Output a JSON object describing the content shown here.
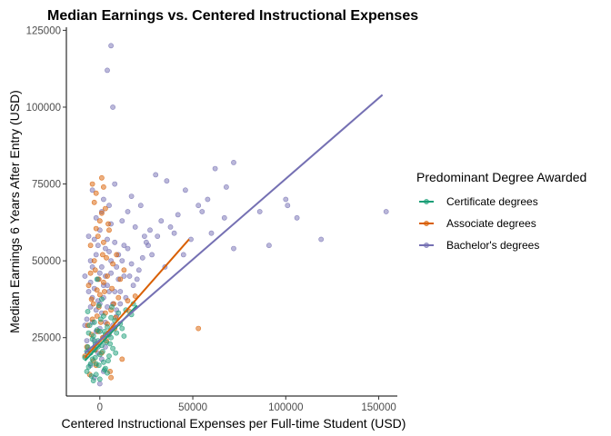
{
  "chart_data": {
    "type": "scatter",
    "title": "Median Earnings vs. Centered Instructional Expenses",
    "xlabel": "Centered Instructional Expenses per Full-time Student (USD)",
    "ylabel": "Median Earnings 6 Years After Entry (USD)",
    "xlim": [
      -18000,
      160000
    ],
    "ylim": [
      6000,
      126000
    ],
    "x_ticks": [
      0,
      50000,
      100000,
      150000
    ],
    "x_tick_labels": [
      "0",
      "50000",
      "100000",
      "150000"
    ],
    "y_ticks": [
      25000,
      50000,
      75000,
      100000,
      125000
    ],
    "y_tick_labels": [
      "25000",
      "50000",
      "75000",
      "100000",
      "125000"
    ],
    "grid": false,
    "legend": {
      "title": "Predominant Degree Awarded",
      "placement": "right"
    },
    "series": [
      {
        "name": "Certificate degrees",
        "color": "#1b9e77",
        "fit_line": {
          "x": [
            -8000,
            20000
          ],
          "y": [
            17500,
            35500
          ]
        },
        "points": [
          [
            -6000,
            15500
          ],
          [
            -4000,
            18000
          ],
          [
            -3000,
            21000
          ],
          [
            -2000,
            16500
          ],
          [
            -1000,
            24000
          ],
          [
            0,
            19500
          ],
          [
            1000,
            22500
          ],
          [
            2000,
            17000
          ],
          [
            3000,
            26000
          ],
          [
            -5000,
            20000
          ],
          [
            4000,
            28500
          ],
          [
            -7000,
            14000
          ],
          [
            500,
            31000
          ],
          [
            6000,
            25000
          ],
          [
            -2500,
            23000
          ],
          [
            8000,
            30500
          ],
          [
            -4500,
            12500
          ],
          [
            1500,
            20500
          ],
          [
            10000,
            33000
          ],
          [
            -6500,
            22000
          ],
          [
            2500,
            14500
          ],
          [
            -1500,
            27500
          ],
          [
            5000,
            19000
          ],
          [
            -3500,
            25500
          ],
          [
            14000,
            34000
          ],
          [
            -500,
            16000
          ],
          [
            3500,
            23500
          ],
          [
            -5500,
            29000
          ],
          [
            7000,
            21500
          ],
          [
            12000,
            28000
          ],
          [
            -8000,
            18500
          ],
          [
            2000,
            32000
          ],
          [
            -2000,
            13000
          ],
          [
            9000,
            26500
          ],
          [
            0,
            11500
          ],
          [
            -3000,
            30000
          ],
          [
            4500,
            17500
          ],
          [
            6500,
            35000
          ],
          [
            -6000,
            26500
          ],
          [
            1000,
            37500
          ],
          [
            -1000,
            22000
          ],
          [
            17000,
            32500
          ],
          [
            -4000,
            24500
          ],
          [
            3000,
            15000
          ],
          [
            11000,
            29500
          ],
          [
            -7000,
            20500
          ],
          [
            5500,
            23000
          ],
          [
            -500,
            35500
          ],
          [
            8500,
            20000
          ],
          [
            -2500,
            18500
          ],
          [
            18000,
            36000
          ],
          [
            -5000,
            16500
          ],
          [
            2500,
            27000
          ],
          [
            -1500,
            44000
          ],
          [
            4000,
            13500
          ],
          [
            -3500,
            11000
          ],
          [
            6000,
            31500
          ],
          [
            0,
            27000
          ],
          [
            -6500,
            33500
          ],
          [
            13000,
            25500
          ]
        ]
      },
      {
        "name": "Associate degrees",
        "color": "#d95f02",
        "fit_line": {
          "x": [
            -8000,
            48000
          ],
          "y": [
            18500,
            57000
          ]
        },
        "points": [
          [
            -4000,
            75000
          ],
          [
            1000,
            77000
          ],
          [
            -2000,
            72000
          ],
          [
            2000,
            74000
          ],
          [
            -3000,
            69000
          ],
          [
            0,
            63000
          ],
          [
            3000,
            67000
          ],
          [
            -1000,
            58000
          ],
          [
            5000,
            60000
          ],
          [
            -5000,
            55000
          ],
          [
            1500,
            52000
          ],
          [
            7000,
            49000
          ],
          [
            -2500,
            47000
          ],
          [
            4000,
            45000
          ],
          [
            -6000,
            42000
          ],
          [
            2500,
            40000
          ],
          [
            10000,
            38000
          ],
          [
            -3500,
            36000
          ],
          [
            6000,
            34000
          ],
          [
            -1500,
            32000
          ],
          [
            500,
            30000
          ],
          [
            8000,
            28000
          ],
          [
            -4500,
            26000
          ],
          [
            3500,
            24000
          ],
          [
            -7000,
            22000
          ],
          [
            1000,
            20000
          ],
          [
            12000,
            18000
          ],
          [
            -2000,
            16000
          ],
          [
            5500,
            14000
          ],
          [
            -5500,
            13000
          ],
          [
            15000,
            37000
          ],
          [
            -500,
            44000
          ],
          [
            2000,
            56000
          ],
          [
            4500,
            62000
          ],
          [
            -3000,
            50000
          ],
          [
            9000,
            52000
          ],
          [
            0,
            39000
          ],
          [
            -1000,
            27000
          ],
          [
            3000,
            33000
          ],
          [
            6500,
            41000
          ],
          [
            -6500,
            29000
          ],
          [
            11000,
            44000
          ],
          [
            -2500,
            21000
          ],
          [
            1500,
            25000
          ],
          [
            7500,
            36000
          ],
          [
            -4000,
            31000
          ],
          [
            13000,
            47000
          ],
          [
            2000,
            43000
          ],
          [
            -500,
            35000
          ],
          [
            4000,
            29500
          ],
          [
            -8000,
            19000
          ],
          [
            5000,
            26500
          ],
          [
            -1500,
            40500
          ],
          [
            8500,
            31500
          ],
          [
            0,
            23500
          ],
          [
            16000,
            33500
          ],
          [
            -3500,
            17500
          ],
          [
            3500,
            51000
          ],
          [
            -5000,
            46000
          ],
          [
            19000,
            38500
          ],
          [
            53000,
            28000
          ],
          [
            6000,
            12000
          ],
          [
            -2000,
            60500
          ],
          [
            1000,
            65500
          ],
          [
            -4500,
            37500
          ]
        ]
      },
      {
        "name": "Bachelor's degrees",
        "color": "#7570b3",
        "fit_line": {
          "x": [
            -8000,
            152000
          ],
          "y": [
            20000,
            104000
          ]
        },
        "points": [
          [
            6000,
            120000
          ],
          [
            4000,
            112000
          ],
          [
            7000,
            100000
          ],
          [
            30000,
            78000
          ],
          [
            36000,
            76000
          ],
          [
            62000,
            80000
          ],
          [
            72000,
            82000
          ],
          [
            68000,
            74000
          ],
          [
            46000,
            73000
          ],
          [
            100000,
            70000
          ],
          [
            58000,
            70000
          ],
          [
            86000,
            66000
          ],
          [
            154000,
            66000
          ],
          [
            42000,
            65000
          ],
          [
            53000,
            68000
          ],
          [
            55000,
            66000
          ],
          [
            33000,
            63000
          ],
          [
            60000,
            59000
          ],
          [
            38000,
            61000
          ],
          [
            27000,
            60000
          ],
          [
            22000,
            68000
          ],
          [
            17000,
            71000
          ],
          [
            15000,
            66000
          ],
          [
            26000,
            55000
          ],
          [
            19000,
            61000
          ],
          [
            40000,
            59000
          ],
          [
            49000,
            57000
          ],
          [
            12000,
            63000
          ],
          [
            72000,
            54000
          ],
          [
            91000,
            55000
          ],
          [
            119000,
            57000
          ],
          [
            106000,
            64000
          ],
          [
            101000,
            68000
          ],
          [
            67000,
            64000
          ],
          [
            45000,
            52000
          ],
          [
            35000,
            48000
          ],
          [
            28000,
            52000
          ],
          [
            21000,
            47000
          ],
          [
            13000,
            55000
          ],
          [
            24000,
            58000
          ],
          [
            31000,
            58000
          ],
          [
            10000,
            52000
          ],
          [
            16000,
            45000
          ],
          [
            5000,
            68000
          ],
          [
            -2000,
            64000
          ],
          [
            2000,
            70000
          ],
          [
            -4000,
            73000
          ],
          [
            8000,
            75000
          ],
          [
            0,
            60000
          ],
          [
            -3000,
            57000
          ],
          [
            3000,
            54000
          ],
          [
            -5000,
            50000
          ],
          [
            1000,
            48000
          ],
          [
            6000,
            46000
          ],
          [
            -1000,
            44000
          ],
          [
            4000,
            42000
          ],
          [
            -6000,
            40000
          ],
          [
            2000,
            38000
          ],
          [
            7000,
            36000
          ],
          [
            -2000,
            34000
          ],
          [
            9000,
            32000
          ],
          [
            -4000,
            30000
          ],
          [
            0,
            28000
          ],
          [
            5000,
            26000
          ],
          [
            -7000,
            24000
          ],
          [
            3000,
            22000
          ],
          [
            -1000,
            20000
          ],
          [
            1000,
            18000
          ],
          [
            -5000,
            16000
          ],
          [
            2000,
            14000
          ],
          [
            -3000,
            12000
          ],
          [
            0,
            10000
          ],
          [
            4000,
            35000
          ],
          [
            -8000,
            45000
          ],
          [
            11000,
            40000
          ],
          [
            14000,
            38000
          ],
          [
            -6000,
            58000
          ],
          [
            8000,
            56000
          ],
          [
            -2000,
            52000
          ],
          [
            6000,
            62000
          ],
          [
            1000,
            66000
          ],
          [
            -4000,
            48000
          ],
          [
            3000,
            30000
          ],
          [
            10000,
            44000
          ],
          [
            -1000,
            37000
          ],
          [
            5000,
            40000
          ],
          [
            12000,
            50000
          ],
          [
            -3000,
            41000
          ],
          [
            7000,
            29000
          ],
          [
            2000,
            25000
          ],
          [
            -5000,
            35000
          ],
          [
            9000,
            48000
          ],
          [
            0,
            46000
          ],
          [
            18000,
            42000
          ],
          [
            23000,
            51000
          ],
          [
            -7000,
            31000
          ],
          [
            4000,
            57000
          ],
          [
            -2000,
            27000
          ],
          [
            15000,
            54000
          ],
          [
            1000,
            33000
          ],
          [
            -6000,
            21000
          ],
          [
            6000,
            50000
          ],
          [
            3000,
            45000
          ],
          [
            20000,
            44000
          ],
          [
            -4000,
            38000
          ],
          [
            8000,
            40000
          ],
          [
            -1000,
            55000
          ],
          [
            11000,
            36000
          ],
          [
            -8000,
            29000
          ],
          [
            2000,
            42000
          ],
          [
            13000,
            45000
          ],
          [
            -3000,
            24000
          ],
          [
            5000,
            53000
          ],
          [
            17000,
            49000
          ],
          [
            0,
            36000
          ],
          [
            25000,
            56000
          ],
          [
            -5000,
            43000
          ],
          [
            9000,
            34000
          ]
        ]
      }
    ]
  }
}
